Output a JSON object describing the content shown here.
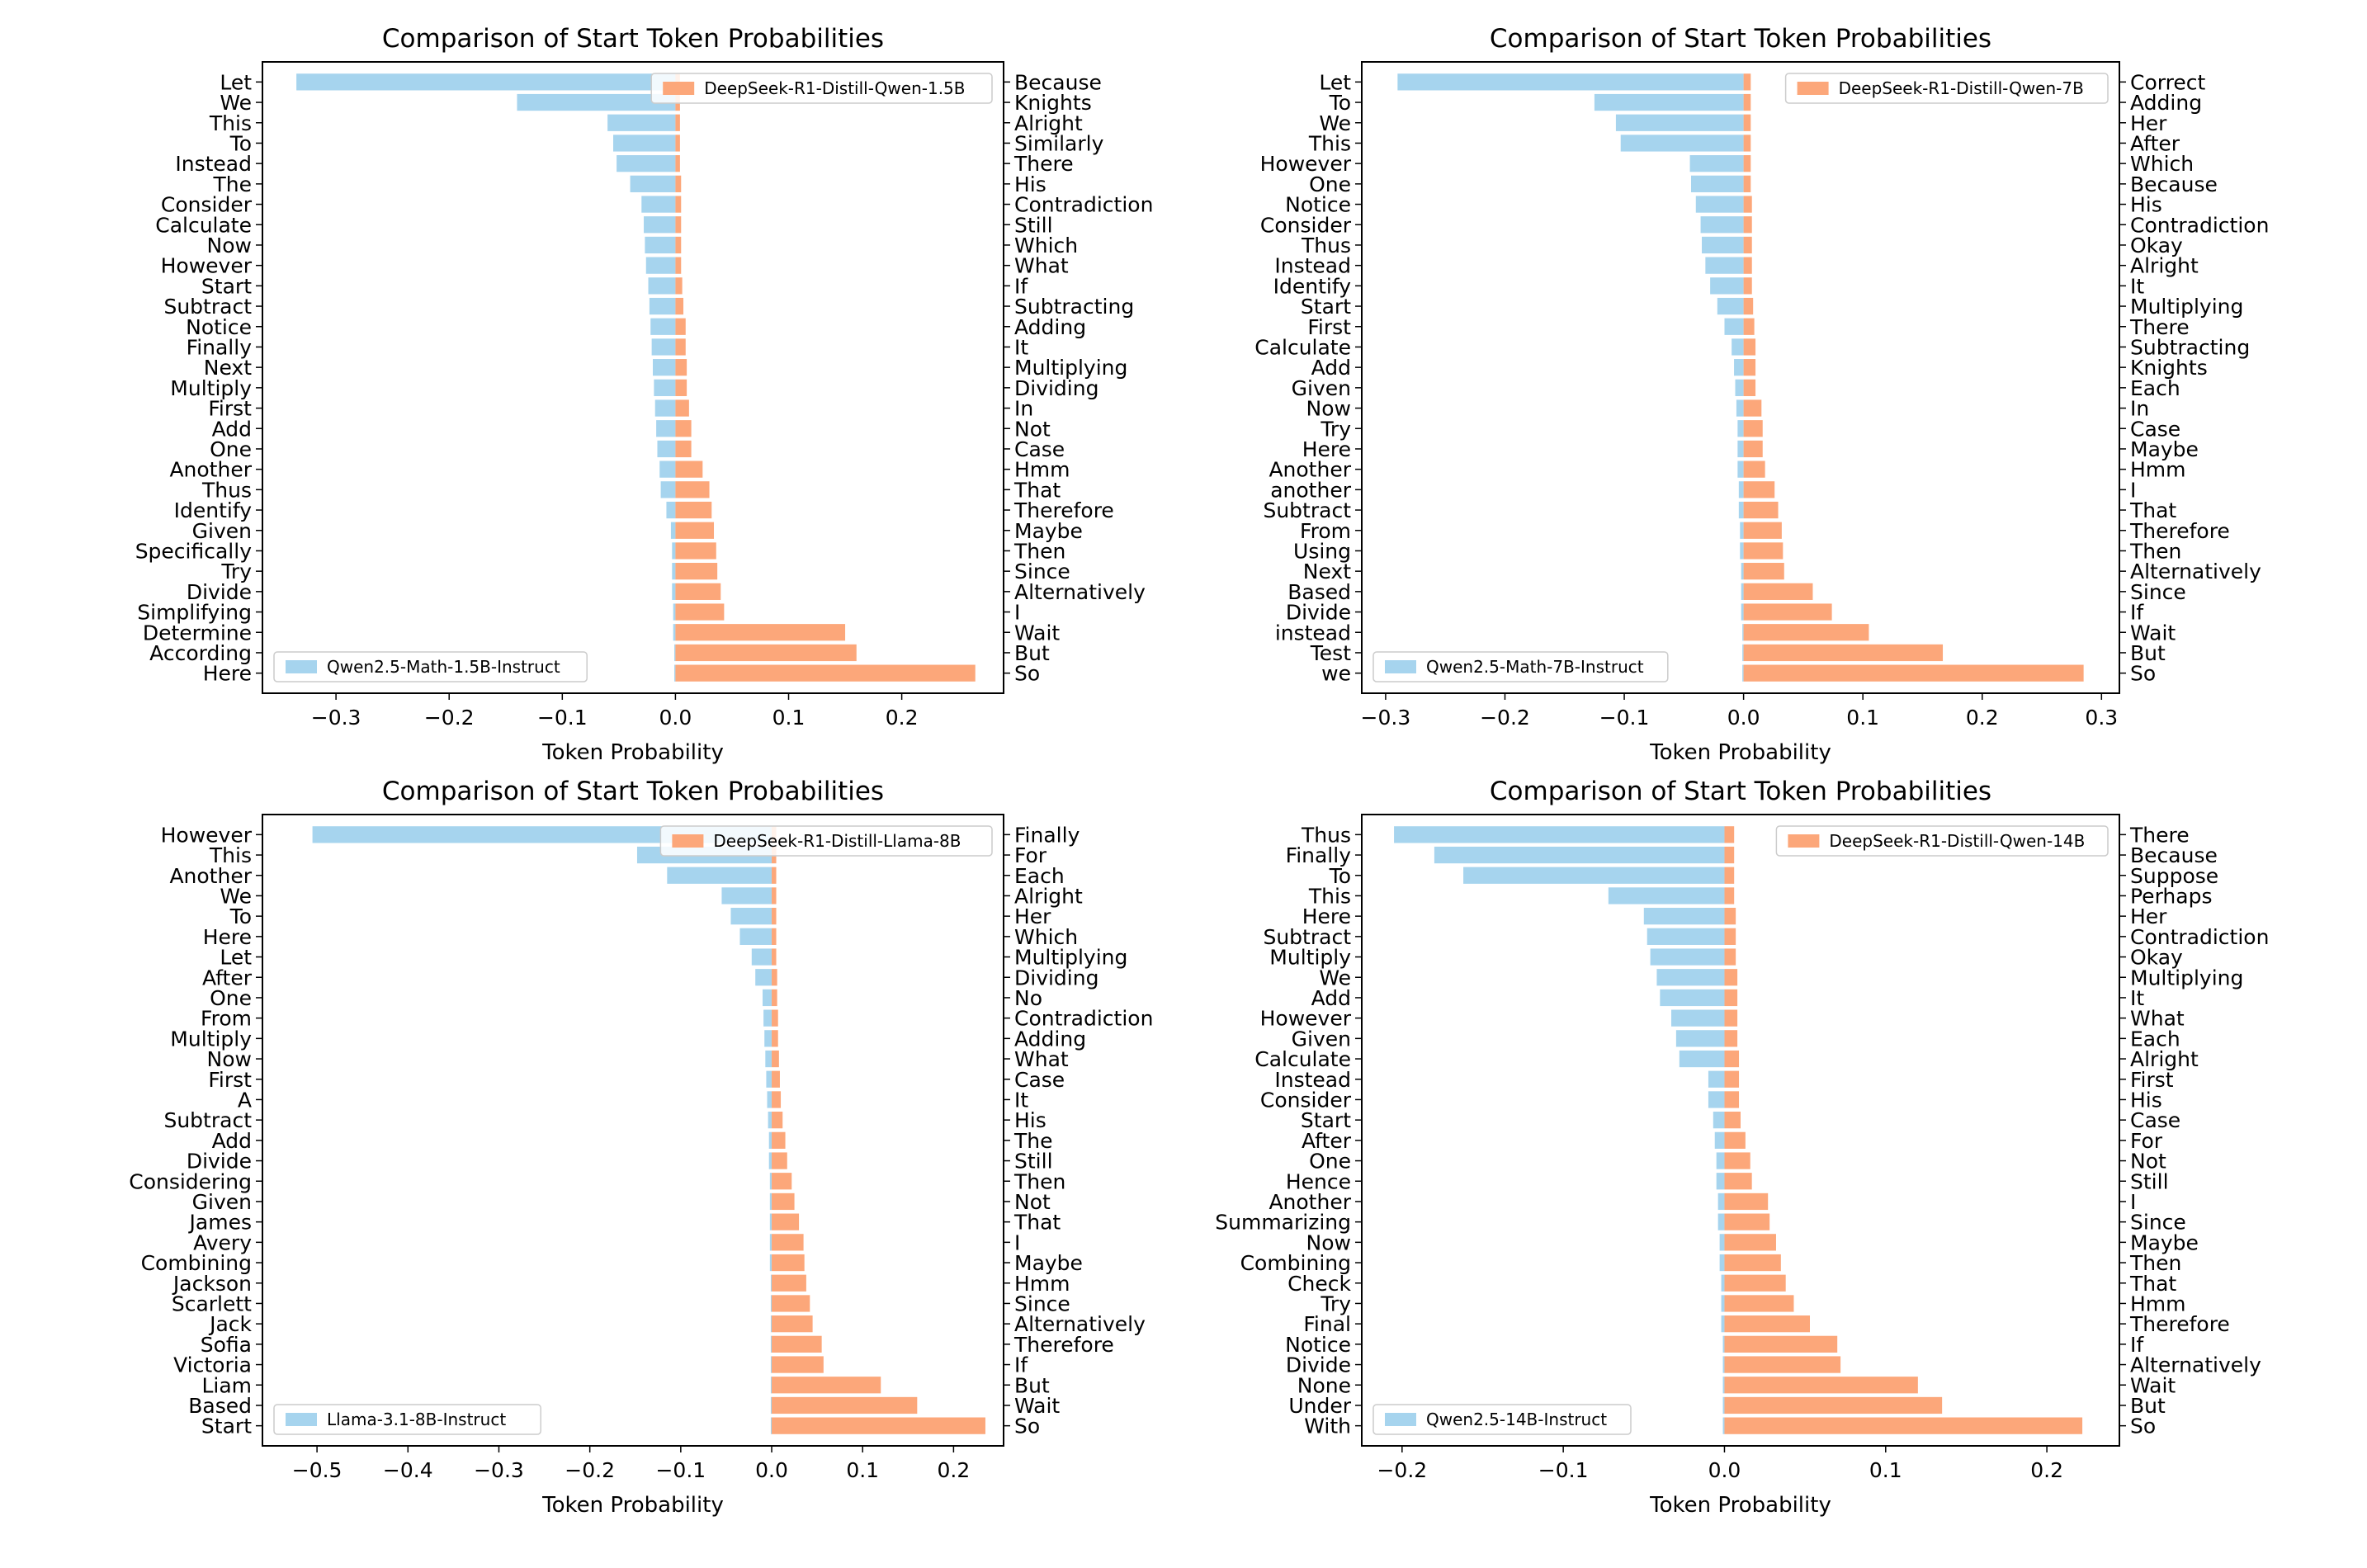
{
  "colors": {
    "base": "#a6d4ee",
    "distill": "#fca77a",
    "frame": "#000000",
    "legend_border": "#cccccc"
  },
  "chart_data": [
    {
      "type": "bar",
      "orientation": "horizontal",
      "title": "Comparison of Start Token Probabilities",
      "xlabel": "Token Probability",
      "xlim": [
        -0.365,
        0.29
      ],
      "xticks": [
        -0.3,
        -0.2,
        -0.1,
        0.0,
        0.1,
        0.2
      ],
      "xtick_labels": [
        "−0.3",
        "−0.2",
        "−0.1",
        "0.0",
        "0.1",
        "0.2"
      ],
      "grid": false,
      "base_series": {
        "name": "Qwen2.5-Math-1.5B-Instruct",
        "legend_position": "lower-left",
        "labels": [
          "Let",
          "We",
          "This",
          "To",
          "Instead",
          "The",
          "Consider",
          "Calculate",
          "Now",
          "However",
          "Start",
          "Subtract",
          "Notice",
          "Finally",
          "Next",
          "Multiply",
          "First",
          "Add",
          "One",
          "Another",
          "Thus",
          "Identify",
          "Given",
          "Specifically",
          "Try",
          "Divide",
          "Simplifying",
          "Determine",
          "According",
          "Here"
        ],
        "values": [
          -0.335,
          -0.14,
          -0.06,
          -0.055,
          -0.052,
          -0.04,
          -0.03,
          -0.028,
          -0.027,
          -0.026,
          -0.024,
          -0.023,
          -0.022,
          -0.021,
          -0.02,
          -0.019,
          -0.018,
          -0.017,
          -0.016,
          -0.014,
          -0.013,
          -0.008,
          -0.004,
          -0.003,
          -0.003,
          -0.003,
          -0.002,
          -0.002,
          -0.001,
          -0.001
        ]
      },
      "distill_series": {
        "name": "DeepSeek-R1-Distill-Qwen-1.5B",
        "legend_position": "upper-right",
        "labels": [
          "Because",
          "Knights",
          "Alright",
          "Similarly",
          "There",
          "His",
          "Contradiction",
          "Still",
          "Which",
          "What",
          "If",
          "Subtracting",
          "Adding",
          "It",
          "Multiplying",
          "Dividing",
          "In",
          "Not",
          "Case",
          "Hmm",
          "That",
          "Therefore",
          "Maybe",
          "Then",
          "Since",
          "Alternatively",
          "I",
          "Wait",
          "But",
          "So"
        ],
        "values": [
          0.004,
          0.004,
          0.004,
          0.004,
          0.004,
          0.005,
          0.005,
          0.005,
          0.005,
          0.005,
          0.006,
          0.007,
          0.009,
          0.009,
          0.01,
          0.01,
          0.012,
          0.014,
          0.014,
          0.024,
          0.03,
          0.032,
          0.034,
          0.036,
          0.037,
          0.04,
          0.043,
          0.15,
          0.16,
          0.265
        ]
      }
    },
    {
      "type": "bar",
      "orientation": "horizontal",
      "title": "Comparison of Start Token Probabilities",
      "xlabel": "Token Probability",
      "xlim": [
        -0.32,
        0.315
      ],
      "xticks": [
        -0.3,
        -0.2,
        -0.1,
        0.0,
        0.1,
        0.2,
        0.3
      ],
      "xtick_labels": [
        "−0.3",
        "−0.2",
        "−0.1",
        "0.0",
        "0.1",
        "0.2",
        "0.3"
      ],
      "grid": false,
      "base_series": {
        "name": "Qwen2.5-Math-7B-Instruct",
        "legend_position": "lower-left",
        "labels": [
          "Let",
          "To",
          "We",
          "This",
          "However",
          "One",
          "Notice",
          "Consider",
          "Thus",
          "Instead",
          "Identify",
          "Start",
          "First",
          "Calculate",
          "Add",
          "Given",
          "Now",
          "Try",
          "Here",
          "Another",
          "another",
          "Subtract",
          "From",
          "Using",
          "Next",
          "Based",
          "Divide",
          "instead",
          "Test",
          "we"
        ],
        "values": [
          -0.29,
          -0.125,
          -0.107,
          -0.103,
          -0.045,
          -0.044,
          -0.04,
          -0.036,
          -0.035,
          -0.032,
          -0.028,
          -0.022,
          -0.016,
          -0.01,
          -0.008,
          -0.007,
          -0.006,
          -0.005,
          -0.005,
          -0.005,
          -0.004,
          -0.004,
          -0.003,
          -0.003,
          -0.002,
          -0.002,
          -0.002,
          -0.001,
          -0.001,
          -0.001
        ]
      },
      "distill_series": {
        "name": "DeepSeek-R1-Distill-Qwen-7B",
        "legend_position": "upper-right",
        "labels": [
          "Correct",
          "Adding",
          "Her",
          "After",
          "Which",
          "Because",
          "His",
          "Contradiction",
          "Okay",
          "Alright",
          "It",
          "Multiplying",
          "There",
          "Subtracting",
          "Knights",
          "Each",
          "In",
          "Case",
          "Maybe",
          "Hmm",
          "I",
          "That",
          "Therefore",
          "Then",
          "Alternatively",
          "Since",
          "If",
          "Wait",
          "But",
          "So"
        ],
        "values": [
          0.006,
          0.006,
          0.006,
          0.006,
          0.006,
          0.006,
          0.007,
          0.007,
          0.007,
          0.007,
          0.007,
          0.008,
          0.009,
          0.01,
          0.01,
          0.01,
          0.015,
          0.016,
          0.016,
          0.018,
          0.026,
          0.029,
          0.032,
          0.033,
          0.034,
          0.058,
          0.074,
          0.105,
          0.167,
          0.285
        ]
      }
    },
    {
      "type": "bar",
      "orientation": "horizontal",
      "title": "Comparison of Start Token Probabilities",
      "xlabel": "Token Probability",
      "xlim": [
        -0.56,
        0.255
      ],
      "xticks": [
        -0.5,
        -0.4,
        -0.3,
        -0.2,
        -0.1,
        0.0,
        0.1,
        0.2
      ],
      "xtick_labels": [
        "−0.5",
        "−0.4",
        "−0.3",
        "−0.2",
        "−0.1",
        "0.0",
        "0.1",
        "0.2"
      ],
      "grid": false,
      "base_series": {
        "name": "Llama-3.1-8B-Instruct",
        "legend_position": "lower-left",
        "labels": [
          "However",
          "This",
          "Another",
          "We",
          "To",
          "Here",
          "Let",
          "After",
          "One",
          "From",
          "Multiply",
          "Now",
          "First",
          "A",
          "Subtract",
          "Add",
          "Divide",
          "Considering",
          "Given",
          "James",
          "Avery",
          "Combining",
          "Jackson",
          "Scarlett",
          "Jack",
          "Sofia",
          "Victoria",
          "Liam",
          "Based",
          "Start"
        ],
        "values": [
          -0.505,
          -0.148,
          -0.115,
          -0.055,
          -0.045,
          -0.035,
          -0.022,
          -0.018,
          -0.01,
          -0.009,
          -0.008,
          -0.007,
          -0.006,
          -0.005,
          -0.004,
          -0.003,
          -0.003,
          -0.002,
          -0.002,
          -0.002,
          -0.002,
          -0.002,
          -0.001,
          -0.001,
          -0.001,
          -0.001,
          -0.001,
          -0.001,
          -0.001,
          -0.001
        ]
      },
      "distill_series": {
        "name": "DeepSeek-R1-Distill-Llama-8B",
        "legend_position": "upper-right",
        "labels": [
          "Finally",
          "For",
          "Each",
          "Alright",
          "Her",
          "Which",
          "Multiplying",
          "Dividing",
          "No",
          "Contradiction",
          "Adding",
          "What",
          "Case",
          "It",
          "His",
          "The",
          "Still",
          "Then",
          "Not",
          "That",
          "I",
          "Maybe",
          "Hmm",
          "Since",
          "Alternatively",
          "Therefore",
          "If",
          "But",
          "Wait",
          "So"
        ],
        "values": [
          0.005,
          0.005,
          0.005,
          0.005,
          0.005,
          0.005,
          0.005,
          0.006,
          0.006,
          0.007,
          0.007,
          0.008,
          0.009,
          0.01,
          0.012,
          0.015,
          0.017,
          0.022,
          0.025,
          0.03,
          0.035,
          0.036,
          0.038,
          0.042,
          0.045,
          0.055,
          0.057,
          0.12,
          0.16,
          0.235
        ]
      }
    },
    {
      "type": "bar",
      "orientation": "horizontal",
      "title": "Comparison of Start Token Probabilities",
      "xlabel": "Token Probability",
      "xlim": [
        -0.225,
        0.245
      ],
      "xticks": [
        -0.2,
        -0.1,
        0.0,
        0.1,
        0.2
      ],
      "xtick_labels": [
        "−0.2",
        "−0.1",
        "0.0",
        "0.1",
        "0.2"
      ],
      "grid": false,
      "base_series": {
        "name": "Qwen2.5-14B-Instruct",
        "legend_position": "lower-left",
        "labels": [
          "Thus",
          "Finally",
          "To",
          "This",
          "Here",
          "Subtract",
          "Multiply",
          "We",
          "Add",
          "However",
          "Given",
          "Calculate",
          "Instead",
          "Consider",
          "Start",
          "After",
          "One",
          "Hence",
          "Another",
          "Summarizing",
          "Now",
          "Combining",
          "Check",
          "Try",
          "Final",
          "Notice",
          "Divide",
          "None",
          "Under",
          "With"
        ],
        "values": [
          -0.205,
          -0.18,
          -0.162,
          -0.072,
          -0.05,
          -0.048,
          -0.046,
          -0.042,
          -0.04,
          -0.033,
          -0.03,
          -0.028,
          -0.01,
          -0.01,
          -0.007,
          -0.006,
          -0.005,
          -0.005,
          -0.004,
          -0.004,
          -0.003,
          -0.003,
          -0.002,
          -0.002,
          -0.002,
          -0.001,
          -0.001,
          -0.001,
          -0.001,
          -0.001
        ]
      },
      "distill_series": {
        "name": "DeepSeek-R1-Distill-Qwen-14B",
        "legend_position": "upper-right",
        "labels": [
          "There",
          "Because",
          "Suppose",
          "Perhaps",
          "Her",
          "Contradiction",
          "Okay",
          "Multiplying",
          "It",
          "What",
          "Each",
          "Alright",
          "First",
          "His",
          "Case",
          "For",
          "Not",
          "Still",
          "I",
          "Since",
          "Maybe",
          "Then",
          "That",
          "Hmm",
          "Therefore",
          "If",
          "Alternatively",
          "Wait",
          "But",
          "So"
        ],
        "values": [
          0.006,
          0.006,
          0.006,
          0.006,
          0.007,
          0.007,
          0.007,
          0.008,
          0.008,
          0.008,
          0.008,
          0.009,
          0.009,
          0.009,
          0.01,
          0.013,
          0.016,
          0.017,
          0.027,
          0.028,
          0.032,
          0.035,
          0.038,
          0.043,
          0.053,
          0.07,
          0.072,
          0.12,
          0.135,
          0.222
        ]
      }
    }
  ]
}
